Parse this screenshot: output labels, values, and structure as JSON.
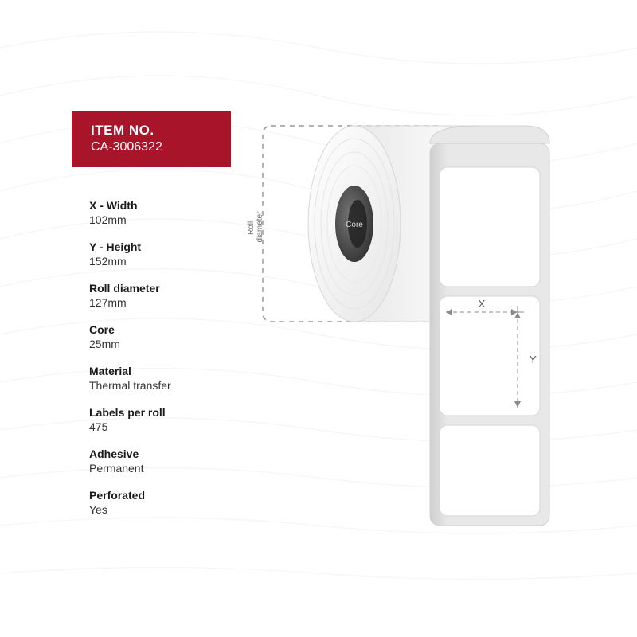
{
  "badge": {
    "label": "ITEM NO.",
    "value": "CA-3006322",
    "bg_color": "#a8152a",
    "text_color": "#ffffff"
  },
  "specs": [
    {
      "label": "X - Width",
      "value": "102mm"
    },
    {
      "label": "Y - Height",
      "value": "152mm"
    },
    {
      "label": "Roll diameter",
      "value": "127mm"
    },
    {
      "label": "Core",
      "value": "25mm"
    },
    {
      "label": "Material",
      "value": "Thermal transfer"
    },
    {
      "label": "Labels per roll",
      "value": "475"
    },
    {
      "label": "Adhesive",
      "value": "Permanent"
    },
    {
      "label": "Perforated",
      "value": "Yes"
    }
  ],
  "diagram": {
    "roll_diameter_text": "Roll\ndiameter",
    "core_text": "Core",
    "x_text": "X",
    "y_text": "Y",
    "colors": {
      "dash": "#9a9a9a",
      "roll_light": "#f5f5f5",
      "roll_mid": "#e2e2e2",
      "roll_dark": "#cfcfcf",
      "core_outer": "#5b5b5b",
      "core_inner": "#3a3a3a",
      "label_bg": "#ffffff",
      "label_stroke": "#d0d0d0",
      "text": "#6f6f6f"
    }
  },
  "background": {
    "wave_color": "#eaeaea"
  }
}
